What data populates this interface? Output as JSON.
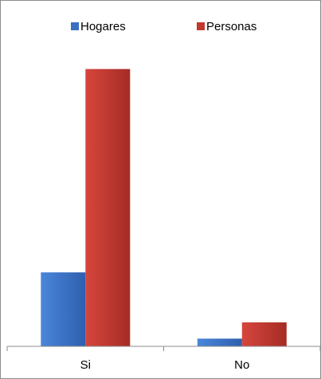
{
  "chart_data": {
    "type": "bar",
    "categories": [
      "Si",
      "No"
    ],
    "series": [
      {
        "name": "Hogares",
        "values": [
          24,
          2.5
        ]
      },
      {
        "name": "Personas",
        "values": [
          90,
          7.8
        ]
      }
    ],
    "ylim": [
      0,
      100
    ],
    "grid": false,
    "legend": "top-center",
    "colors": {
      "Hogares": "#3a6fc4",
      "Personas": "#c0382f",
      "axis": "#8c8c8c",
      "frame": "#8c8c8c"
    }
  }
}
